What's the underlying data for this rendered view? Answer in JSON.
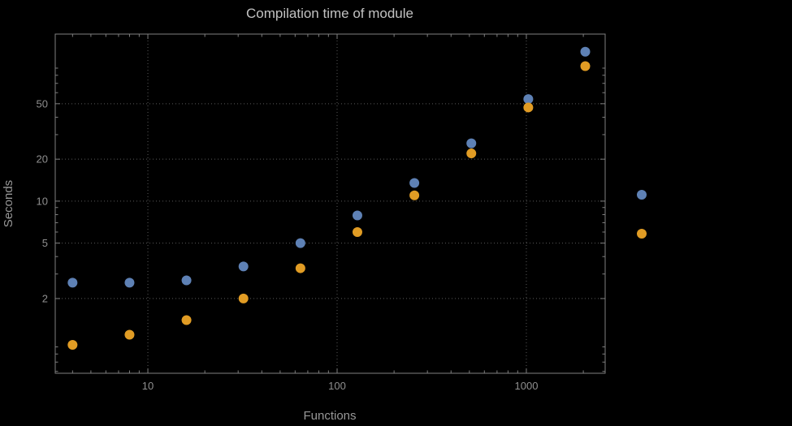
{
  "chart_data": {
    "type": "scatter",
    "title": "Compilation time of module",
    "xlabel": "Functions",
    "ylabel": "Seconds",
    "xscale": "log",
    "yscale": "log",
    "xlim": [
      3.24,
      2609
    ],
    "ylim": [
      0.582,
      158
    ],
    "x_ticks": [
      10,
      100,
      1000
    ],
    "x_tick_labels": [
      "10",
      "100",
      "1000"
    ],
    "y_ticks": [
      2,
      5,
      10,
      20,
      50
    ],
    "y_tick_labels": [
      "2",
      "5",
      "10",
      "20",
      "50"
    ],
    "grid": true,
    "legend_position": "right-outside",
    "x": [
      4,
      8,
      16,
      32,
      64,
      128,
      256,
      512,
      1024,
      2048
    ],
    "series": [
      {
        "name": "blue",
        "color": "#5e81b5",
        "y": [
          2.6,
          2.6,
          2.7,
          3.4,
          5.0,
          7.9,
          13.5,
          26,
          54,
          118
        ]
      },
      {
        "name": "orange",
        "color": "#e19c24",
        "y": [
          0.93,
          1.1,
          1.4,
          2.0,
          3.3,
          6.0,
          11,
          22,
          47,
          93
        ]
      }
    ],
    "legend_markers": [
      {
        "name": "blue",
        "color": "#5e81b5"
      },
      {
        "name": "orange",
        "color": "#e19c24"
      }
    ]
  },
  "colors": {
    "background": "#000000",
    "frame": "#7f7f7f",
    "grid": "#5a5a5a",
    "title": "#c2c2c2",
    "axis_label": "#989898",
    "tick_label": "#8f8f8f"
  }
}
